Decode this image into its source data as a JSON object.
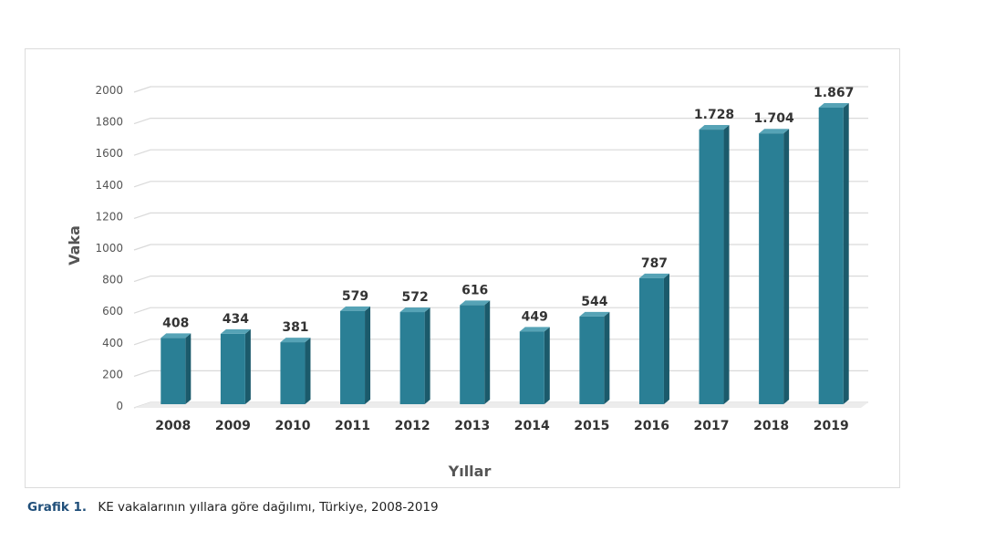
{
  "chart_data": {
    "type": "bar",
    "title": "",
    "xlabel": "Yıllar",
    "ylabel": "Vaka",
    "categories": [
      "2008",
      "2009",
      "2010",
      "2011",
      "2012",
      "2013",
      "2014",
      "2015",
      "2016",
      "2017",
      "2018",
      "2019"
    ],
    "values": [
      408,
      434,
      381,
      579,
      572,
      616,
      449,
      544,
      787,
      1728,
      1704,
      1867
    ],
    "data_labels": [
      "408",
      "434",
      "381",
      "579",
      "572",
      "616",
      "449",
      "544",
      "787",
      "1.728",
      "1.704",
      "1.867"
    ],
    "ylim": [
      0,
      2000
    ],
    "yticks": [
      0,
      200,
      400,
      600,
      800,
      1000,
      1200,
      1400,
      1600,
      1800,
      2000
    ],
    "grid": true,
    "legend": "none",
    "bar_color": "#2a7f95",
    "bar_side_color": "#1b5a6b",
    "bar_top_color": "#56a3b6"
  },
  "caption": {
    "label": "Grafik 1.",
    "text": "KE vakalarının yıllara göre dağılımı, Türkiye, 2008-2019"
  }
}
